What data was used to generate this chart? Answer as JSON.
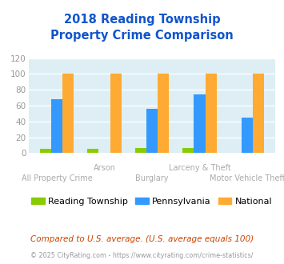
{
  "title_line1": "2018 Reading Township",
  "title_line2": "Property Crime Comparison",
  "categories_top": [
    "",
    "Arson",
    "",
    "Larceny & Theft",
    ""
  ],
  "categories_bottom": [
    "All Property Crime",
    "",
    "Burglary",
    "",
    "Motor Vehicle Theft"
  ],
  "reading_township": [
    5,
    5,
    6,
    6,
    0
  ],
  "pennsylvania": [
    68,
    0,
    56,
    74,
    45
  ],
  "national": [
    100,
    100,
    100,
    100,
    100
  ],
  "colors": {
    "reading_township": "#88cc00",
    "pennsylvania": "#3399ff",
    "national": "#ffaa33"
  },
  "ylim": [
    0,
    120
  ],
  "yticks": [
    0,
    20,
    40,
    60,
    80,
    100,
    120
  ],
  "background_color": "#ddeef5",
  "title_color": "#1155cc",
  "legend_labels": [
    "Reading Township",
    "Pennsylvania",
    "National"
  ],
  "footnote1": "Compared to U.S. average. (U.S. average equals 100)",
  "footnote2": "© 2025 CityRating.com - https://www.cityrating.com/crime-statistics/",
  "footnote1_color": "#cc4400",
  "footnote2_color": "#999999"
}
